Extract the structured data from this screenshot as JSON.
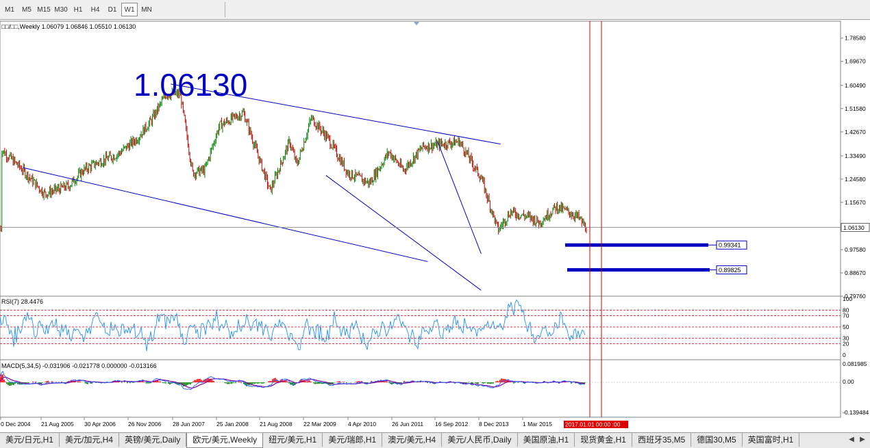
{
  "toolbar": {
    "timeframes": [
      "M1",
      "M5",
      "M15",
      "M30",
      "H1",
      "H4",
      "D1",
      "W1",
      "MN"
    ],
    "active": "W1"
  },
  "main_panel": {
    "header": "□□/□□,Weekly  1.06079 1.06846 1.05510 1.06130",
    "big_price": "1.06130",
    "current_price": "1.06130",
    "price_ticks": [
      "1.78580",
      "1.69670",
      "1.60490",
      "1.51580",
      "1.42670",
      "1.33490",
      "1.24580",
      "1.15670",
      "0.97580",
      "0.88670",
      "0.79760"
    ],
    "price_range": [
      0.7976,
      1.8505
    ],
    "targets": [
      {
        "label": "0.99341",
        "value": 0.99341
      },
      {
        "label": "0.89825",
        "value": 0.89825
      }
    ]
  },
  "rsi_panel": {
    "header": "RSI(7) 28.4476",
    "ticks": [
      "100",
      "80",
      "70",
      "50",
      "30",
      "20",
      "0"
    ],
    "levels": [
      80,
      70,
      50,
      30,
      20
    ]
  },
  "macd_panel": {
    "header": "MACD(5,34,5) -0.031906 -0.021778 0.000000 -0.013166",
    "ticks": [
      "0.081985",
      "0.00",
      "-0.139484"
    ]
  },
  "time_axis": {
    "labels": [
      "0 Dec 2004",
      "21 Aug 2005",
      "30 Apr 2006",
      "26 Nov 2006",
      "28 Jun 2007",
      "25 Jan 2008",
      "21 Aug 2008",
      "22 Mar 2009",
      "4 Apr 2010",
      "26 Jun 2011",
      "16 Sep 2012",
      "8 Dec 2013",
      "1 Mar 2015"
    ],
    "highlight": "2017.01.01 00:00 :00"
  },
  "tabs": [
    {
      "label": "美元/日元,H1"
    },
    {
      "label": "美元/加元,H4"
    },
    {
      "label": "英镑/美元,Daily"
    },
    {
      "label": "欧元/美元,Weekly"
    },
    {
      "label": "纽元/美元,H1"
    },
    {
      "label": "美元/瑞郎,H1"
    },
    {
      "label": "澳元/美元,H4"
    },
    {
      "label": "美元/人民币,Daily"
    },
    {
      "label": "美国原油,H1"
    },
    {
      "label": "现货黄金,H1"
    },
    {
      "label": "西班牙35,M5"
    },
    {
      "label": "德国30,M5"
    },
    {
      "label": "英国富时,H1"
    }
  ],
  "active_tab": "欧元/美元,Weekly",
  "colors": {
    "bull": "#008000",
    "bear": "#c00000",
    "line_blue": "#0000c0",
    "rsi_line": "#1e90ff",
    "red_line": "#d00000",
    "macd_signal": "#8000a0"
  },
  "chart_data": {
    "type": "candlestick",
    "price_anchors": [
      [
        2004.9,
        1.36
      ],
      [
        2005.3,
        1.29
      ],
      [
        2005.8,
        1.19
      ],
      [
        2006.3,
        1.22
      ],
      [
        2006.6,
        1.28
      ],
      [
        2006.9,
        1.31
      ],
      [
        2007.3,
        1.34
      ],
      [
        2007.7,
        1.4
      ],
      [
        2008.0,
        1.47
      ],
      [
        2008.3,
        1.57
      ],
      [
        2008.6,
        1.57
      ],
      [
        2008.85,
        1.27
      ],
      [
        2009.1,
        1.28
      ],
      [
        2009.4,
        1.45
      ],
      [
        2009.9,
        1.5
      ],
      [
        2010.45,
        1.2
      ],
      [
        2010.85,
        1.39
      ],
      [
        2011.0,
        1.3
      ],
      [
        2011.3,
        1.48
      ],
      [
        2011.65,
        1.4
      ],
      [
        2012.05,
        1.27
      ],
      [
        2012.5,
        1.23
      ],
      [
        2012.9,
        1.35
      ],
      [
        2013.2,
        1.28
      ],
      [
        2013.6,
        1.37
      ],
      [
        2014.0,
        1.38
      ],
      [
        2014.35,
        1.39
      ],
      [
        2014.8,
        1.25
      ],
      [
        2015.15,
        1.05
      ],
      [
        2015.4,
        1.12
      ],
      [
        2015.8,
        1.1
      ],
      [
        2016.0,
        1.08
      ],
      [
        2016.35,
        1.14
      ],
      [
        2016.6,
        1.12
      ],
      [
        2016.8,
        1.1
      ],
      [
        2016.95,
        1.0613
      ]
    ],
    "trend_lines": [
      {
        "from": [
          2008.4,
          1.61
        ],
        "to": [
          2015.2,
          1.38
        ]
      },
      {
        "from": [
          2005.35,
          1.29
        ],
        "to": [
          2013.7,
          0.93
        ]
      },
      {
        "from": [
          2013.9,
          1.39
        ],
        "to": [
          2014.8,
          0.96
        ]
      },
      {
        "from": [
          2011.6,
          1.26
        ],
        "to": [
          2014.8,
          0.82
        ]
      }
    ]
  }
}
